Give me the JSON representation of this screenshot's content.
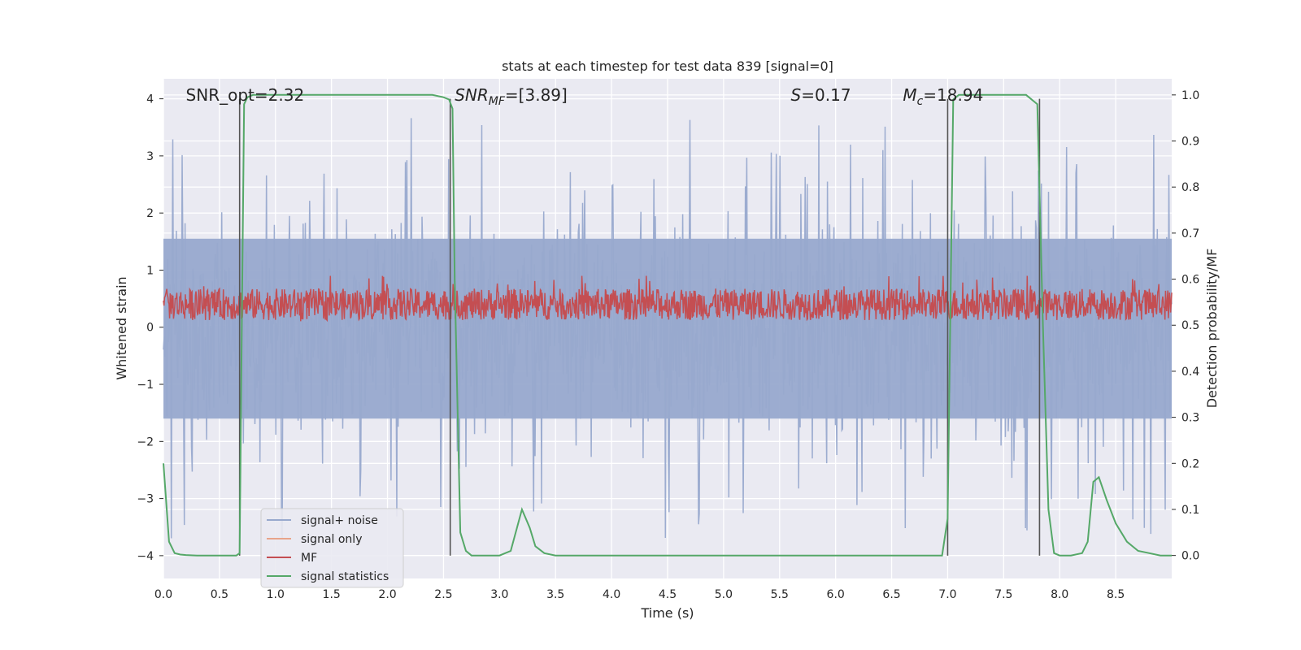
{
  "chart_data": {
    "type": "line",
    "title": "stats at each timestep for test data 839 [signal=0]",
    "xlabel": "Time (s)",
    "ylabel": "Whitened strain",
    "ylabel_right": "Detection probability/MF",
    "xlim": [
      0.0,
      9.0
    ],
    "ylim": [
      -4.4,
      4.35
    ],
    "ylim_right": [
      -0.05,
      1.035
    ],
    "x_ticks": [
      "0.0",
      "0.5",
      "1.0",
      "1.5",
      "2.0",
      "2.5",
      "3.0",
      "3.5",
      "4.0",
      "4.5",
      "5.0",
      "5.5",
      "6.0",
      "6.5",
      "7.0",
      "7.5",
      "8.0",
      "8.5"
    ],
    "y_ticks": [
      "4",
      "3",
      "2",
      "1",
      "0",
      "−1",
      "−2",
      "−3",
      "−4"
    ],
    "y_ticks_right": [
      "1.0",
      "0.9",
      "0.8",
      "0.7",
      "0.6",
      "0.5",
      "0.4",
      "0.3",
      "0.2",
      "0.1",
      "0.0"
    ],
    "grid": true,
    "legend_position": "lower-left",
    "annotations": [
      {
        "text": "SNR_opt=2.32",
        "x": 0.2
      },
      {
        "text": "SNR_MF=[3.89]",
        "x": 2.6
      },
      {
        "text": "S=0.17",
        "x": 5.6
      },
      {
        "text": "M_c=18.94",
        "x": 6.6
      }
    ],
    "series": [
      {
        "name": "signal+ noise",
        "color": "#98a9cd",
        "kind": "noise",
        "amplitude_range": [
          -4.0,
          3.7
        ]
      },
      {
        "name": "signal only",
        "color": "#e8a48a",
        "kind": "flat",
        "values": []
      },
      {
        "name": "MF",
        "color": "#c44e52",
        "kind": "noise",
        "amplitude_range": [
          0.0,
          0.9
        ]
      },
      {
        "name": "signal statistics",
        "color": "#55a868",
        "axis": "right",
        "x": [
          0.0,
          0.05,
          0.1,
          0.15,
          0.2,
          0.3,
          0.4,
          0.5,
          0.6,
          0.65,
          0.68,
          0.7,
          0.72,
          0.75,
          0.8,
          1.0,
          1.5,
          2.0,
          2.4,
          2.5,
          2.55,
          2.58,
          2.6,
          2.65,
          2.7,
          2.75,
          2.8,
          3.0,
          3.1,
          3.2,
          3.27,
          3.32,
          3.4,
          3.5,
          4.0,
          5.0,
          6.0,
          6.5,
          6.95,
          7.0,
          7.05,
          7.1,
          7.5,
          7.7,
          7.8,
          7.85,
          7.9,
          7.95,
          8.0,
          8.1,
          8.2,
          8.25,
          8.3,
          8.35,
          8.42,
          8.5,
          8.6,
          8.7,
          8.8,
          8.9,
          9.0
        ],
        "values": [
          0.2,
          0.03,
          0.005,
          0.002,
          0.001,
          0.0,
          0.0,
          0.0,
          0.0,
          0.0,
          0.005,
          0.5,
          0.98,
          0.995,
          1.0,
          1.0,
          1.0,
          1.0,
          1.0,
          0.995,
          0.99,
          0.97,
          0.6,
          0.05,
          0.01,
          0.0,
          0.0,
          0.0,
          0.01,
          0.1,
          0.06,
          0.02,
          0.005,
          0.0,
          0.0,
          0.0,
          0.0,
          0.0,
          0.0,
          0.08,
          0.99,
          1.0,
          1.0,
          1.0,
          0.98,
          0.5,
          0.1,
          0.005,
          0.0,
          0.0,
          0.005,
          0.03,
          0.16,
          0.17,
          0.12,
          0.07,
          0.03,
          0.01,
          0.005,
          0.0,
          0.0
        ]
      }
    ],
    "vertical_lines_x": [
      0.68,
      2.56,
      7.0,
      7.82
    ],
    "vertical_lines_color": "#555555"
  }
}
